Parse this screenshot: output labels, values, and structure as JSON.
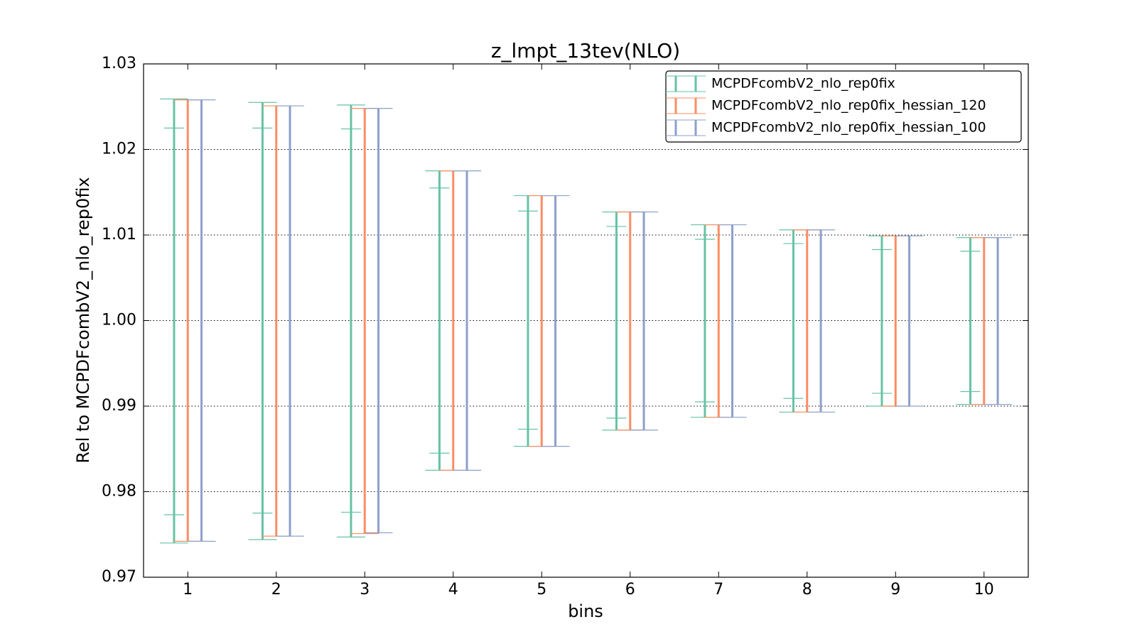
{
  "chart_data": {
    "type": "errorbar",
    "title": "z_lmpt_13tev(NLO)",
    "xlabel": "bins",
    "ylabel": "Rel to MCPDFcombV2_nlo_rep0fix",
    "x": [
      1,
      2,
      3,
      4,
      5,
      6,
      7,
      8,
      9,
      10
    ],
    "xlim": [
      0.5,
      10.5
    ],
    "xticks": [
      1,
      2,
      3,
      4,
      5,
      6,
      7,
      8,
      9,
      10
    ],
    "ylim": [
      0.97,
      1.03
    ],
    "yticks": [
      0.97,
      0.98,
      0.99,
      {
        "value": 1.0,
        "label": "1.00"
      },
      1.01,
      1.02,
      1.03
    ],
    "grid": true,
    "legend": "upper right",
    "series": [
      {
        "name": "MCPDFcombV2_nlo_rep0fix",
        "color": "#66c2a5",
        "upper": [
          1.0259,
          1.0255,
          1.0252,
          1.0175,
          1.0146,
          1.0127,
          1.0112,
          1.0106,
          1.0099,
          1.0097
        ],
        "lower": [
          0.974,
          0.9744,
          0.9747,
          0.9825,
          0.9853,
          0.9872,
          0.9887,
          0.9893,
          0.99,
          0.9902
        ],
        "inner_upper": [
          1.0225,
          1.0225,
          1.0224,
          1.0155,
          1.0128,
          1.011,
          1.0095,
          1.009,
          1.0083,
          1.0081
        ],
        "inner_lower": [
          0.9773,
          0.9775,
          0.9776,
          0.9845,
          0.9873,
          0.9886,
          0.9905,
          0.9909,
          0.9915,
          0.9917
        ]
      },
      {
        "name": "MCPDFcombV2_nlo_rep0fix_hessian_120",
        "color": "#fc8d62",
        "upper": [
          1.0258,
          1.0251,
          1.0248,
          1.0175,
          1.0146,
          1.0127,
          1.0112,
          1.0106,
          1.0099,
          1.0097
        ],
        "lower": [
          0.9742,
          0.9748,
          0.9751,
          0.9825,
          0.9853,
          0.9872,
          0.9887,
          0.9893,
          0.99,
          0.9902
        ]
      },
      {
        "name": "MCPDFcombV2_nlo_rep0fix_hessian_100",
        "color": "#8da0cb",
        "upper": [
          1.0258,
          1.0251,
          1.0248,
          1.0175,
          1.0146,
          1.0127,
          1.0112,
          1.0106,
          1.0099,
          1.0097
        ],
        "lower": [
          0.9742,
          0.9748,
          0.9752,
          0.9825,
          0.9853,
          0.9872,
          0.9887,
          0.9893,
          0.99,
          0.9902
        ]
      }
    ]
  }
}
